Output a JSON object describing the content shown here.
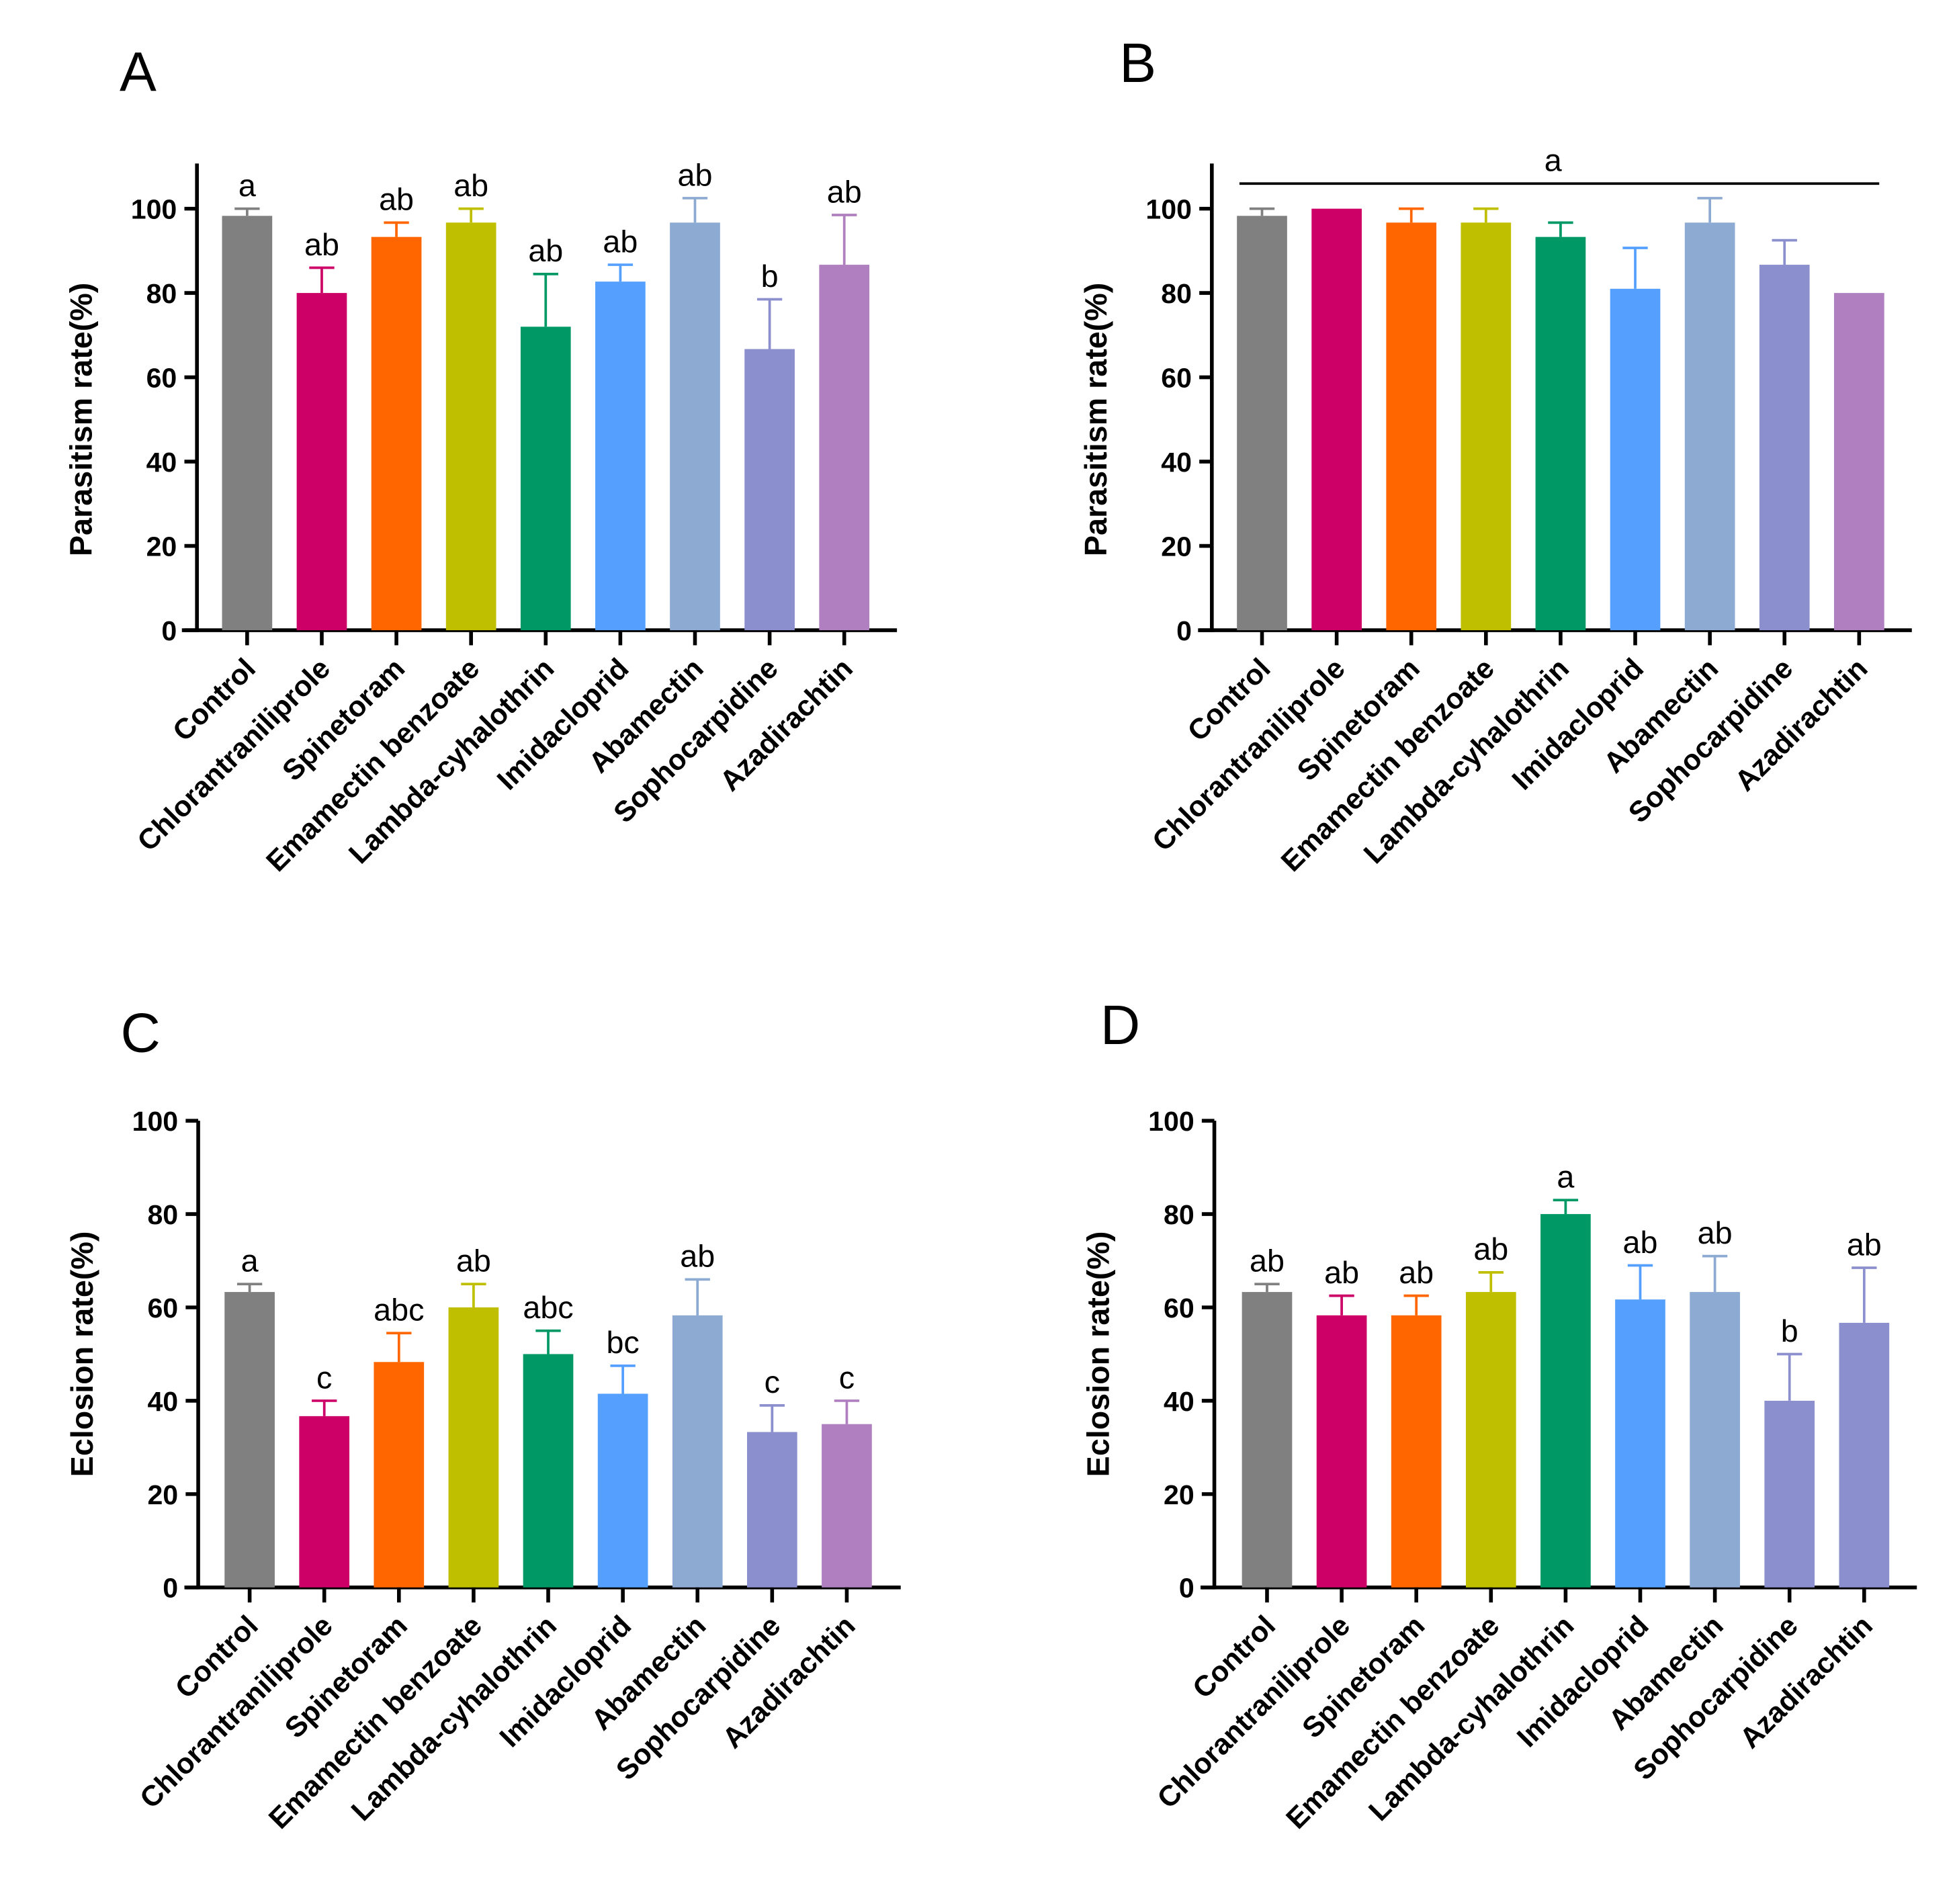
{
  "chart_data": [
    {
      "type": "bar",
      "panel": "A",
      "ylabel": "Parasitism rate(%)",
      "ylim": [
        0,
        100
      ],
      "yticks": [
        "0",
        "20",
        "40",
        "60",
        "80",
        "100"
      ],
      "categories": [
        "Control",
        "Chlorantraniliprole",
        "Spinetoram",
        "Emamectin benzoate",
        "Lambda-cyhalothrin",
        "Imidacloprid",
        "Abamectin",
        "Sophocarpidine",
        "Azadirachtin"
      ],
      "values": [
        98.3,
        80,
        93.3,
        96.7,
        72,
        82.7,
        96.7,
        66.7,
        86.7
      ],
      "error_upper": [
        100,
        86,
        96.7,
        100,
        84.5,
        86.7,
        102.5,
        78.5,
        98.5
      ],
      "letters": [
        "a",
        "ab",
        "ab",
        "ab",
        "ab",
        "ab",
        "ab",
        "b",
        "ab"
      ],
      "group_letter": null
    },
    {
      "type": "bar",
      "panel": "B",
      "ylabel": "Parasitism rate(%)",
      "ylim": [
        0,
        100
      ],
      "yticks": [
        "0",
        "20",
        "40",
        "60",
        "80",
        "100"
      ],
      "categories": [
        "Control",
        "Chlorantraniliprole",
        "Spinetoram",
        "Emamectin benzoate",
        "Lambda-cyhalothrin",
        "Imidacloprid",
        "Abamectin",
        "Sophocarpidine",
        "Azadirachtin"
      ],
      "values": [
        98.3,
        100,
        96.7,
        96.7,
        93.3,
        81,
        96.7,
        86.7,
        80
      ],
      "error_upper": [
        100,
        100,
        100,
        100,
        96.7,
        90.7,
        102.5,
        92.5,
        80
      ],
      "letters": [
        "",
        "",
        "",
        "",
        "",
        "",
        "",
        "",
        ""
      ],
      "group_letter": "a"
    },
    {
      "type": "bar",
      "panel": "C",
      "ylabel": "Eclosion rate(%)",
      "ylim": [
        0,
        100
      ],
      "yticks": [
        "0",
        "20",
        "40",
        "60",
        "80",
        "100"
      ],
      "categories": [
        "Control",
        "Chlorantraniliprole",
        "Spinetoram",
        "Emamectin benzoate",
        "Lambda-cyhalothrin",
        "Imidacloprid",
        "Abamectin",
        "Sophocarpidine",
        "Azadirachtin"
      ],
      "values": [
        63.3,
        36.7,
        48.3,
        60,
        50,
        41.5,
        58.3,
        33.3,
        35
      ],
      "error_upper": [
        65,
        40,
        54.5,
        65,
        55,
        47.5,
        66,
        39,
        40
      ],
      "letters": [
        "a",
        "c",
        "abc",
        "ab",
        "abc",
        "bc",
        "ab",
        "c",
        "c"
      ],
      "group_letter": null
    },
    {
      "type": "bar",
      "panel": "D",
      "ylabel": "Eclosion rate(%)",
      "ylim": [
        0,
        100
      ],
      "yticks": [
        "0",
        "20",
        "40",
        "60",
        "80",
        "100"
      ],
      "categories": [
        "Control",
        "Chlorantraniliprole",
        "Spinetoram",
        "Emamectin benzoate",
        "Lambda-cyhalothrin",
        "Imidacloprid",
        "Abamectin",
        "Sophocarpidine",
        "Azadirachtin"
      ],
      "values": [
        63.3,
        58.3,
        58.3,
        63.3,
        80,
        61.7,
        63.3,
        40,
        56.7
      ],
      "error_upper": [
        65,
        62.5,
        62.5,
        67.5,
        83,
        69,
        71,
        50,
        68.5
      ],
      "letters": [
        "ab",
        "ab",
        "ab",
        "ab",
        "a",
        "ab",
        "ab",
        "b",
        "ab"
      ],
      "group_letter": null
    }
  ],
  "colors": [
    "#808080",
    "#cc0066",
    "#ff6600",
    "#bfbf00",
    "#009966",
    "#55a0ff",
    "#8caad2",
    "#8b8fce",
    "#b07fc0"
  ],
  "colors_d_last": "#8b8fce"
}
